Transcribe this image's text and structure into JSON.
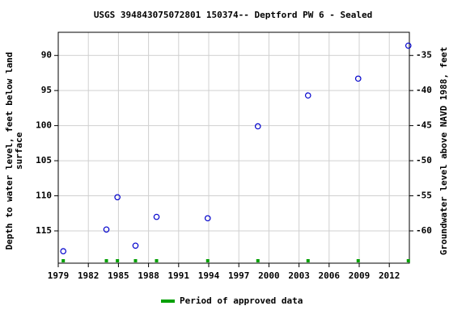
{
  "chart_data": {
    "type": "scatter",
    "title": "USGS 394843075072801 150374-- Deptford PW 6 - Sealed",
    "y_label": [
      "Depth to water level, feet below land",
      "surface"
    ],
    "y2_label": "Groundwater level above NAVD 1988, feet",
    "xlim": [
      1979,
      2014
    ],
    "xticks": [
      1979,
      1982,
      1985,
      1988,
      1991,
      1994,
      1997,
      2000,
      2003,
      2006,
      2009,
      2012
    ],
    "ylim": [
      119.6,
      86.7
    ],
    "yticks": [
      90,
      95,
      100,
      105,
      110,
      115
    ],
    "y2lim": [
      -64.6,
      -31.7
    ],
    "y2ticks": [
      -35,
      -40,
      -45,
      -50,
      -55,
      -60
    ],
    "grid": true,
    "series": [
      {
        "name": "Depth to water level",
        "color": "#0000cc",
        "x": [
          1979.5,
          1983.8,
          1984.9,
          1986.7,
          1988.8,
          1993.9,
          1998.9,
          2003.9,
          2008.9,
          2013.9
        ],
        "values": [
          117.9,
          114.8,
          110.2,
          117.1,
          113.0,
          113.2,
          100.1,
          95.7,
          93.3,
          88.6
        ]
      },
      {
        "name": "Period of approved data",
        "color": "#00a000",
        "x": [
          1979.5,
          1983.8,
          1984.9,
          1986.7,
          1988.8,
          1993.9,
          1998.9,
          2003.9,
          2008.9,
          2013.9
        ]
      }
    ]
  }
}
